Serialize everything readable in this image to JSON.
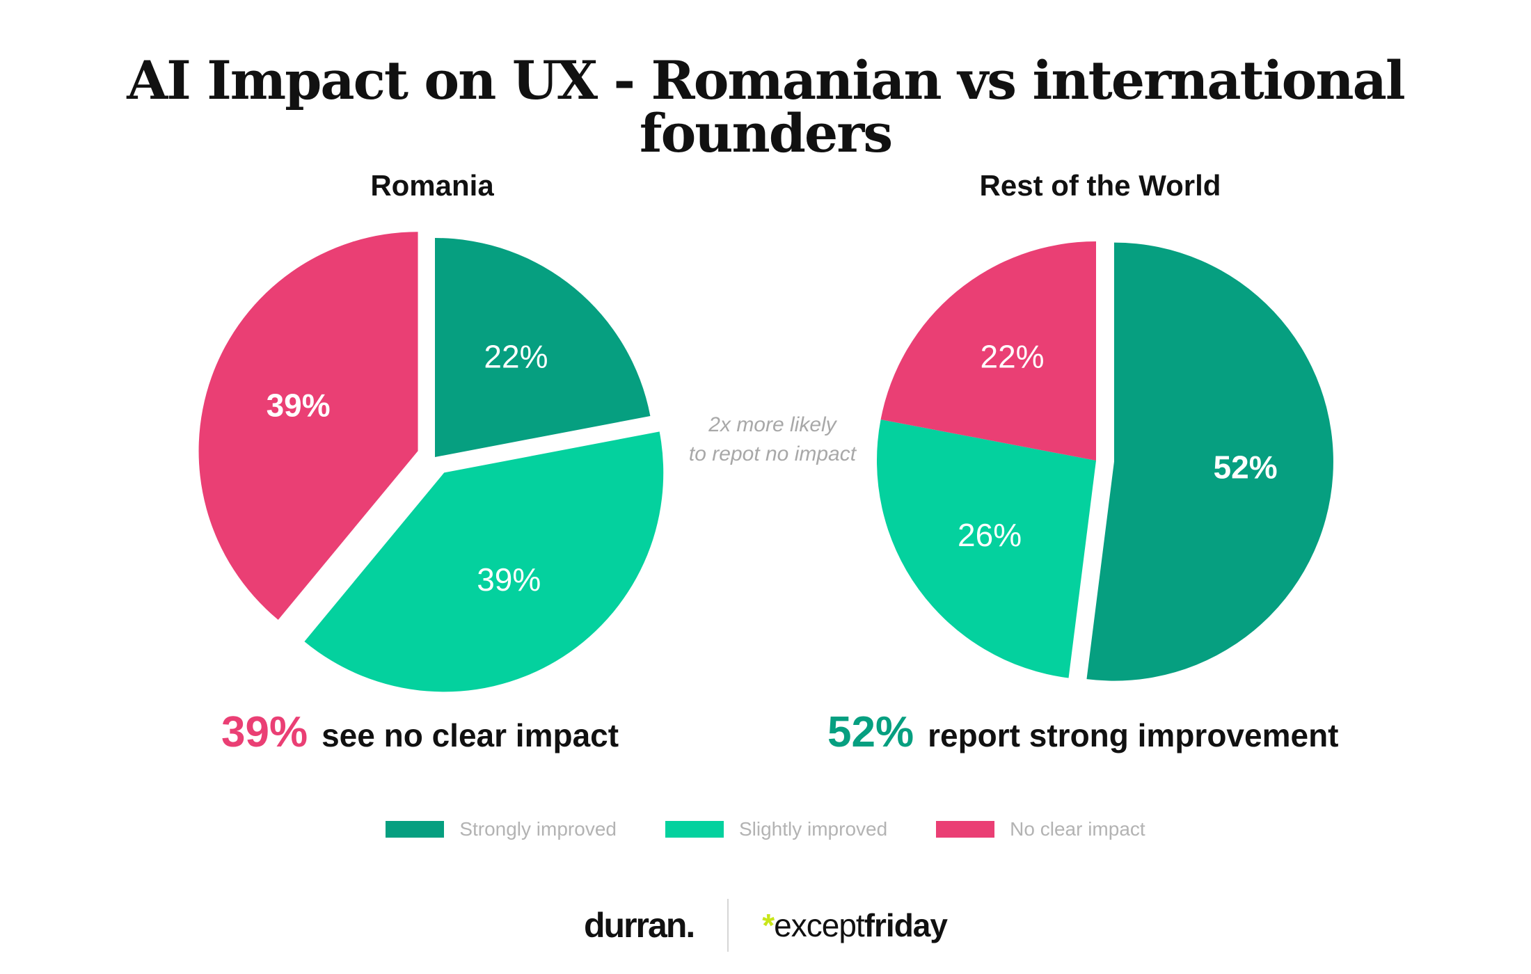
{
  "title": "AI Impact on UX - Romanian vs international founders",
  "colors": {
    "strongly": "#069f80",
    "slightly": "#04d19e",
    "no_impact": "#ea3f74",
    "note": "#a8a8a8",
    "legend_text": "#b3b3b3",
    "brand_star": "#c8e61a"
  },
  "chart_data": [
    {
      "type": "pie",
      "title": "Romania",
      "slices": [
        {
          "label": "Strongly improved",
          "value": 22,
          "display": "22%",
          "color": "#069f80",
          "exploded": false
        },
        {
          "label": "Slightly improved",
          "value": 39,
          "display": "39%",
          "color": "#04d19e",
          "exploded": true
        },
        {
          "label": "No clear impact",
          "value": 39,
          "display": "39%",
          "color": "#ea3f74",
          "exploded": true
        }
      ],
      "highlight": {
        "label": "No clear impact"
      }
    },
    {
      "type": "pie",
      "title": "Rest of the World",
      "slices": [
        {
          "label": "Strongly improved",
          "value": 52,
          "display": "52%",
          "color": "#069f80",
          "exploded": true
        },
        {
          "label": "Slightly improved",
          "value": 26,
          "display": "26%",
          "color": "#04d19e",
          "exploded": false
        },
        {
          "label": "No clear impact",
          "value": 22,
          "display": "22%",
          "color": "#ea3f74",
          "exploded": false
        }
      ],
      "highlight": {
        "label": "Strongly improved"
      }
    }
  ],
  "note": {
    "line1": "2x more likely",
    "line2": "to repot no impact"
  },
  "callouts": {
    "romania": {
      "pct": "39%",
      "text": "see no clear impact",
      "color": "#ea3f74"
    },
    "rest": {
      "pct": "52%",
      "text": "report strong improvement",
      "color": "#069f80"
    }
  },
  "legend": [
    {
      "label": "Strongly improved",
      "color": "#069f80"
    },
    {
      "label": "Slightly improved",
      "color": "#04d19e"
    },
    {
      "label": "No clear impact",
      "color": "#ea3f74"
    }
  ],
  "footer": {
    "brand1": "durran.",
    "brand2_star": "*",
    "brand2_part1": "except",
    "brand2_part2": "friday"
  }
}
